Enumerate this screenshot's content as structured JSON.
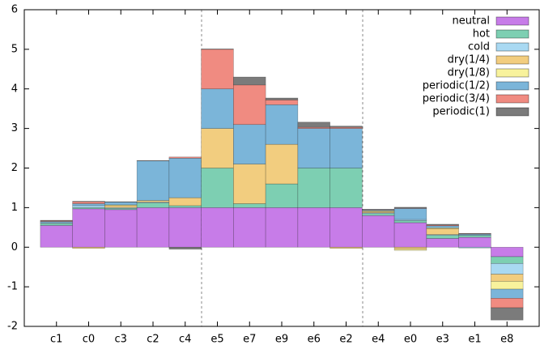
{
  "chart_data": {
    "type": "bar",
    "stacked": true,
    "categories": [
      "c1",
      "c0",
      "c3",
      "c2",
      "c4",
      "e5",
      "e7",
      "e9",
      "e6",
      "e2",
      "e4",
      "e0",
      "e3",
      "e1",
      "e8"
    ],
    "series": [
      {
        "name": "neutral",
        "color": "#c77ce8",
        "values": [
          0.55,
          0.97,
          0.95,
          1.0,
          1.0,
          1.0,
          1.0,
          1.0,
          1.0,
          1.0,
          0.8,
          0.62,
          0.22,
          0.25,
          -0.24
        ]
      },
      {
        "name": "hot",
        "color": "#7dcfb2",
        "values": [
          0.05,
          0.03,
          0.03,
          0.12,
          0.05,
          1.0,
          0.1,
          0.6,
          1.0,
          1.0,
          0.05,
          0.05,
          0.08,
          0.05,
          -0.17
        ]
      },
      {
        "name": "cold",
        "color": "#a9d9f2",
        "values": [
          0.02,
          0.05,
          0.02,
          0.02,
          0.0,
          0.0,
          0.0,
          0.0,
          0.0,
          0.0,
          0.02,
          0.03,
          0.02,
          -0.02,
          -0.27
        ]
      },
      {
        "name": "dry(1/4)",
        "color": "#f2cd7f",
        "values": [
          0.0,
          -0.03,
          0.05,
          0.04,
          0.2,
          1.0,
          1.0,
          1.0,
          0.0,
          -0.03,
          0.03,
          -0.05,
          0.15,
          0.0,
          -0.18
        ]
      },
      {
        "name": "dry(1/8)",
        "color": "#f8f29c",
        "values": [
          0.0,
          0.0,
          0.02,
          0.0,
          0.0,
          0.0,
          0.0,
          0.0,
          0.0,
          0.0,
          0.02,
          -0.03,
          0.02,
          0.0,
          -0.2
        ]
      },
      {
        "name": "periodic(1/2)",
        "color": "#7bb5d9",
        "values": [
          0.03,
          0.05,
          0.07,
          1.0,
          1.0,
          1.0,
          1.0,
          1.0,
          1.0,
          1.0,
          0.02,
          0.28,
          0.05,
          0.03,
          -0.23
        ]
      },
      {
        "name": "periodic(3/4)",
        "color": "#f08b81",
        "values": [
          0.02,
          0.05,
          0.0,
          0.0,
          0.03,
          1.0,
          1.0,
          0.12,
          0.03,
          0.03,
          0.01,
          0.01,
          0.02,
          0.01,
          -0.24
        ]
      },
      {
        "name": "periodic(1)",
        "color": "#7b7b7b",
        "values": [
          0.01,
          0.01,
          0.01,
          0.01,
          -0.05,
          0.01,
          0.2,
          0.05,
          0.13,
          0.03,
          0.01,
          0.02,
          0.02,
          0.01,
          -0.31
        ]
      }
    ],
    "ylim": [
      -2,
      6
    ],
    "yticks": [
      -2,
      -1,
      0,
      1,
      2,
      3,
      4,
      5,
      6
    ],
    "legend": "top right"
  }
}
